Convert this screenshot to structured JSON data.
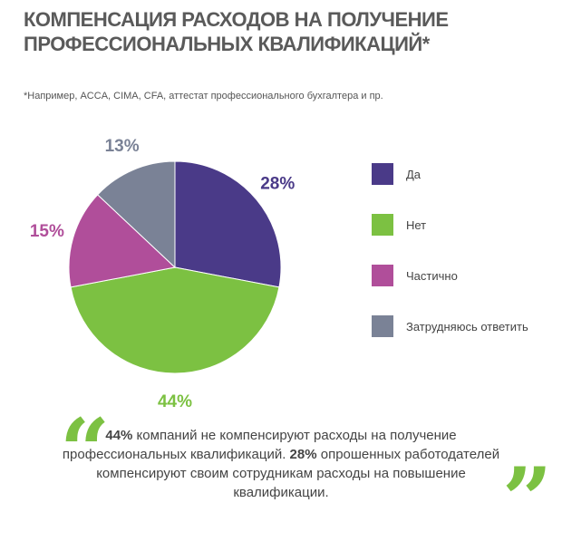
{
  "title": {
    "line1": "КОМПЕНСАЦИЯ РАСХОДОВ НА ПОЛУЧЕНИЕ",
    "line2": "ПРОФЕССИОНАЛЬНЫХ КВАЛИФИКАЦИЙ*"
  },
  "footnote": "*Например, ACCA, CIMA, CFA, аттестат профессионального бухгалтера и пр.",
  "chart_data": {
    "type": "pie",
    "categories": [
      "Да",
      "Нет",
      "Частично",
      "Затрудняюсь ответить"
    ],
    "values": [
      28,
      44,
      15,
      13
    ],
    "value_labels": [
      "28%",
      "44%",
      "15%",
      "13%"
    ],
    "colors": [
      "#4a3a88",
      "#7cc142",
      "#b04e9a",
      "#7a8296"
    ],
    "legend_position": "right"
  },
  "quote": {
    "open_mark": "“",
    "close_mark": "”",
    "p1": "44%",
    "t1": " компаний не компенсируют расходы на получение профессиональных квалификаций. ",
    "p2": "28%",
    "t2": " опрошенных работодателей компенсируют своим сотрудникам расходы на повышение квалификации."
  }
}
